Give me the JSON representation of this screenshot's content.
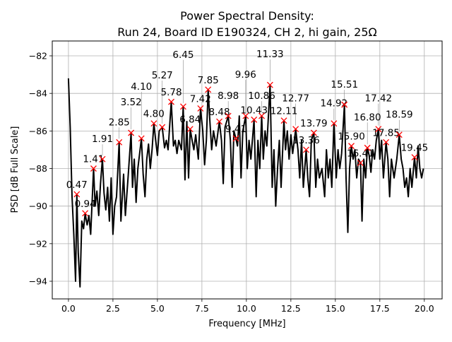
{
  "chart_data": {
    "type": "line",
    "title": "Power Spectral Density:",
    "subtitle": "Run 24, Board ID E190324, CH 2, hi gain, 25Ω",
    "xlabel": "Frequency [MHz]",
    "ylabel": "PSD [dB Full Scale]",
    "xlim": [
      -0.91,
      21.0
    ],
    "ylim": [
      -94.94,
      -81.21
    ],
    "xticks": [
      0.0,
      2.5,
      5.0,
      7.5,
      10.0,
      12.5,
      15.0,
      17.5,
      20.0
    ],
    "xtick_labels": [
      "0.0",
      "2.5",
      "5.0",
      "7.5",
      "10.0",
      "12.5",
      "15.0",
      "17.5",
      "20.0"
    ],
    "yticks": [
      -94,
      -92,
      -90,
      -88,
      -86,
      -84,
      -82
    ],
    "ytick_labels": [
      "−94",
      "−92",
      "−90",
      "−88",
      "−86",
      "−84",
      "−82"
    ],
    "grid": true,
    "colors": {
      "line": "#000000",
      "peaks": "#ff0000"
    },
    "series": [
      {
        "x": [
          0.0,
          0.1,
          0.2,
          0.3,
          0.4,
          0.47,
          0.55,
          0.65,
          0.75,
          0.85,
          0.94,
          1.05,
          1.15,
          1.25,
          1.41,
          1.5,
          1.6,
          1.7,
          1.8,
          1.91,
          2.0,
          2.1,
          2.2,
          2.3,
          2.4,
          2.5,
          2.6,
          2.7,
          2.85,
          2.95,
          3.1,
          3.2,
          3.35,
          3.52,
          3.6,
          3.7,
          3.8,
          3.9,
          4.0,
          4.1,
          4.2,
          4.3,
          4.4,
          4.5,
          4.6,
          4.7,
          4.8,
          4.9,
          5.0,
          5.1,
          5.27,
          5.4,
          5.5,
          5.6,
          5.78,
          5.9,
          6.0,
          6.1,
          6.2,
          6.35,
          6.45,
          6.55,
          6.65,
          6.75,
          6.84,
          6.95,
          7.05,
          7.15,
          7.3,
          7.42,
          7.55,
          7.65,
          7.75,
          7.85,
          7.95,
          8.05,
          8.15,
          8.3,
          8.48,
          8.6,
          8.7,
          8.8,
          8.98,
          9.1,
          9.2,
          9.3,
          9.41,
          9.5,
          9.6,
          9.7,
          9.8,
          9.96,
          10.05,
          10.15,
          10.25,
          10.43,
          10.55,
          10.65,
          10.75,
          10.86,
          10.95,
          11.05,
          11.15,
          11.33,
          11.45,
          11.55,
          11.65,
          11.75,
          11.85,
          11.95,
          12.11,
          12.2,
          12.3,
          12.4,
          12.5,
          12.6,
          12.77,
          12.9,
          13.0,
          13.1,
          13.2,
          13.36,
          13.45,
          13.55,
          13.65,
          13.79,
          13.9,
          14.0,
          14.1,
          14.25,
          14.4,
          14.5,
          14.6,
          14.7,
          14.8,
          14.92,
          15.05,
          15.15,
          15.25,
          15.35,
          15.51,
          15.6,
          15.7,
          15.8,
          15.9,
          16.0,
          16.1,
          16.2,
          16.3,
          16.41,
          16.5,
          16.6,
          16.7,
          16.8,
          16.9,
          17.0,
          17.1,
          17.2,
          17.3,
          17.42,
          17.5,
          17.6,
          17.7,
          17.85,
          17.95,
          18.05,
          18.15,
          18.3,
          18.45,
          18.59,
          18.7,
          18.8,
          18.9,
          19.0,
          19.1,
          19.2,
          19.3,
          19.45,
          19.55,
          19.65,
          19.75,
          19.85,
          19.95
        ],
        "y": [
          -83.2,
          -85.8,
          -89.5,
          -91.5,
          -94.0,
          -89.4,
          -92.5,
          -94.3,
          -90.8,
          -91.2,
          -90.4,
          -91.0,
          -90.5,
          -91.5,
          -88.0,
          -90.0,
          -89.2,
          -90.5,
          -88.8,
          -87.5,
          -89.3,
          -90.2,
          -89.0,
          -90.8,
          -88.5,
          -91.5,
          -90.0,
          -89.5,
          -86.6,
          -90.8,
          -88.3,
          -90.5,
          -88.5,
          -86.1,
          -89.0,
          -87.5,
          -89.8,
          -88.0,
          -87.2,
          -86.4,
          -88.3,
          -89.5,
          -87.5,
          -86.7,
          -88.0,
          -87.0,
          -85.6,
          -86.5,
          -87.3,
          -86.0,
          -85.8,
          -86.9,
          -86.5,
          -87.0,
          -84.45,
          -86.8,
          -86.5,
          -87.2,
          -86.5,
          -87.0,
          -84.7,
          -88.6,
          -85.5,
          -88.5,
          -85.9,
          -86.5,
          -87.0,
          -86.2,
          -87.5,
          -84.8,
          -86.0,
          -87.8,
          -86.5,
          -83.8,
          -85.5,
          -87.0,
          -86.0,
          -86.8,
          -85.5,
          -86.5,
          -88.8,
          -85.8,
          -85.2,
          -86.5,
          -89.0,
          -86.0,
          -86.4,
          -86.8,
          -85.2,
          -88.5,
          -86.0,
          -85.2,
          -88.0,
          -86.5,
          -87.5,
          -85.4,
          -89.5,
          -86.5,
          -88.0,
          -85.2,
          -87.5,
          -86.0,
          -86.8,
          -83.55,
          -89.0,
          -87.0,
          -90.0,
          -88.0,
          -86.5,
          -89.0,
          -85.45,
          -87.0,
          -86.0,
          -87.5,
          -86.2,
          -87.2,
          -85.9,
          -87.0,
          -88.5,
          -86.5,
          -89.0,
          -87.0,
          -88.5,
          -89.5,
          -86.5,
          -86.1,
          -89.0,
          -87.5,
          -88.5,
          -88.0,
          -89.5,
          -87.0,
          -88.5,
          -87.5,
          -89.0,
          -85.6,
          -88.5,
          -87.0,
          -88.0,
          -87.2,
          -84.6,
          -88.5,
          -91.4,
          -88.0,
          -86.8,
          -87.5,
          -87.0,
          -88.5,
          -87.5,
          -87.7,
          -90.8,
          -87.5,
          -88.5,
          -86.9,
          -87.3,
          -88.2,
          -87.0,
          -87.5,
          -86.5,
          -85.9,
          -87.5,
          -86.5,
          -88.5,
          -86.6,
          -87.5,
          -89.5,
          -87.5,
          -88.5,
          -87.5,
          -86.2,
          -87.5,
          -88.0,
          -89.0,
          -88.5,
          -89.5,
          -88.0,
          -89.0,
          -87.4,
          -88.5,
          -86.8,
          -88.0,
          -88.5,
          -88.0
        ]
      }
    ],
    "peaks": {
      "x": [
        0.47,
        0.94,
        1.41,
        1.91,
        2.85,
        3.52,
        4.1,
        4.8,
        5.27,
        5.78,
        6.45,
        6.84,
        7.42,
        7.85,
        8.48,
        8.98,
        9.41,
        9.96,
        10.43,
        10.86,
        11.33,
        12.11,
        12.77,
        13.36,
        13.79,
        14.92,
        15.51,
        15.9,
        16.41,
        16.8,
        17.42,
        17.85,
        18.59,
        19.45
      ],
      "y": [
        -89.37,
        -90.38,
        -88.0,
        -87.5,
        -86.6,
        -86.1,
        -86.4,
        -85.6,
        -85.8,
        -84.45,
        -84.7,
        -85.9,
        -84.8,
        -83.8,
        -85.5,
        -85.2,
        -86.4,
        -85.2,
        -85.4,
        -85.2,
        -83.55,
        -85.45,
        -85.9,
        -87.0,
        -86.1,
        -85.6,
        -84.6,
        -86.8,
        -87.7,
        -86.9,
        -85.9,
        -86.6,
        -86.2,
        -87.4
      ],
      "labels": [
        "0.47",
        "0.94",
        "1.41",
        "1.91",
        "2.85",
        "3.52",
        "4.10",
        "4.80",
        "5.27",
        "5.78",
        "6.45",
        "6.84",
        "7.42",
        "7.85",
        "8.48",
        "8.98",
        "9.41",
        "9.96",
        "10.43",
        "10.86",
        "11.33",
        "12.11",
        "12.77",
        "13.36",
        "13.79",
        "14.92",
        "15.51",
        "15.90",
        "16.41",
        "16.80",
        "17.42",
        "17.85",
        "18.59",
        "19.45"
      ]
    }
  }
}
